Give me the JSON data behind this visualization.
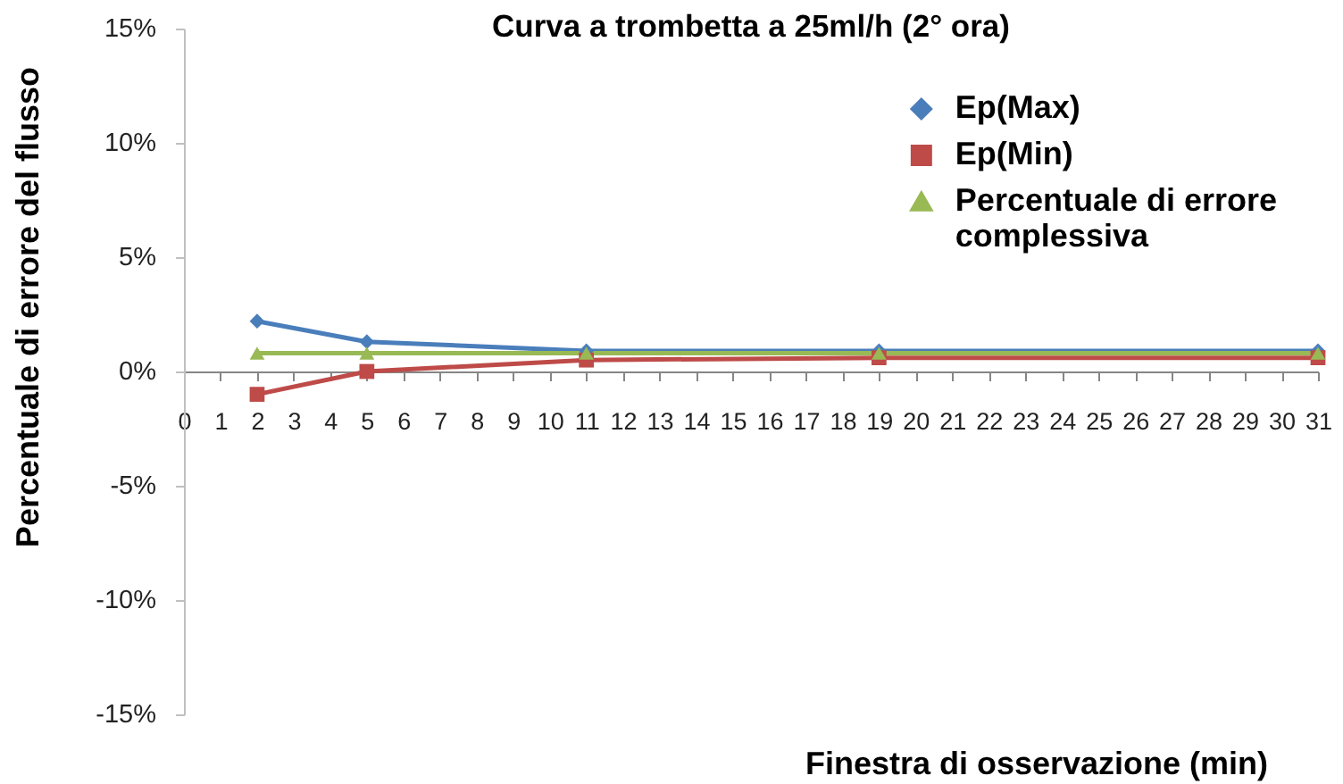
{
  "chart_data": {
    "type": "line",
    "title": "Curva a trombetta a 25ml/h (2° ora)",
    "xlabel": "Finestra di osservazione (min)",
    "ylabel": "Percentuale di errore del flusso",
    "x": [
      2,
      5,
      11,
      19,
      31
    ],
    "series": [
      {
        "name": "Ep(Max)",
        "color": "#4a7ebb",
        "marker": "diamond",
        "values": [
          2.2,
          1.3,
          0.9,
          0.9,
          0.9
        ]
      },
      {
        "name": "Ep(Min)",
        "color": "#be4b48",
        "marker": "square",
        "values": [
          -1.0,
          0.0,
          0.5,
          0.6,
          0.6
        ]
      },
      {
        "name": "Percentuale di errore complessiva",
        "color": "#98b954",
        "marker": "triangle",
        "values": [
          0.8,
          0.8,
          0.8,
          0.8,
          0.8
        ]
      }
    ],
    "xlim": [
      0,
      31
    ],
    "xticks": [
      0,
      1,
      2,
      3,
      4,
      5,
      6,
      7,
      8,
      9,
      10,
      11,
      12,
      13,
      14,
      15,
      16,
      17,
      18,
      19,
      20,
      21,
      22,
      23,
      24,
      25,
      26,
      27,
      28,
      29,
      30,
      31
    ],
    "ylim": [
      -15,
      15
    ],
    "yticks": [
      {
        "value": -15,
        "label": "-15%"
      },
      {
        "value": -10,
        "label": "-10%"
      },
      {
        "value": -5,
        "label": "-5%"
      },
      {
        "value": 0,
        "label": "0%"
      },
      {
        "value": 5,
        "label": "5%"
      },
      {
        "value": 10,
        "label": "10%"
      },
      {
        "value": 15,
        "label": "15%"
      }
    ],
    "legend": "top right"
  }
}
